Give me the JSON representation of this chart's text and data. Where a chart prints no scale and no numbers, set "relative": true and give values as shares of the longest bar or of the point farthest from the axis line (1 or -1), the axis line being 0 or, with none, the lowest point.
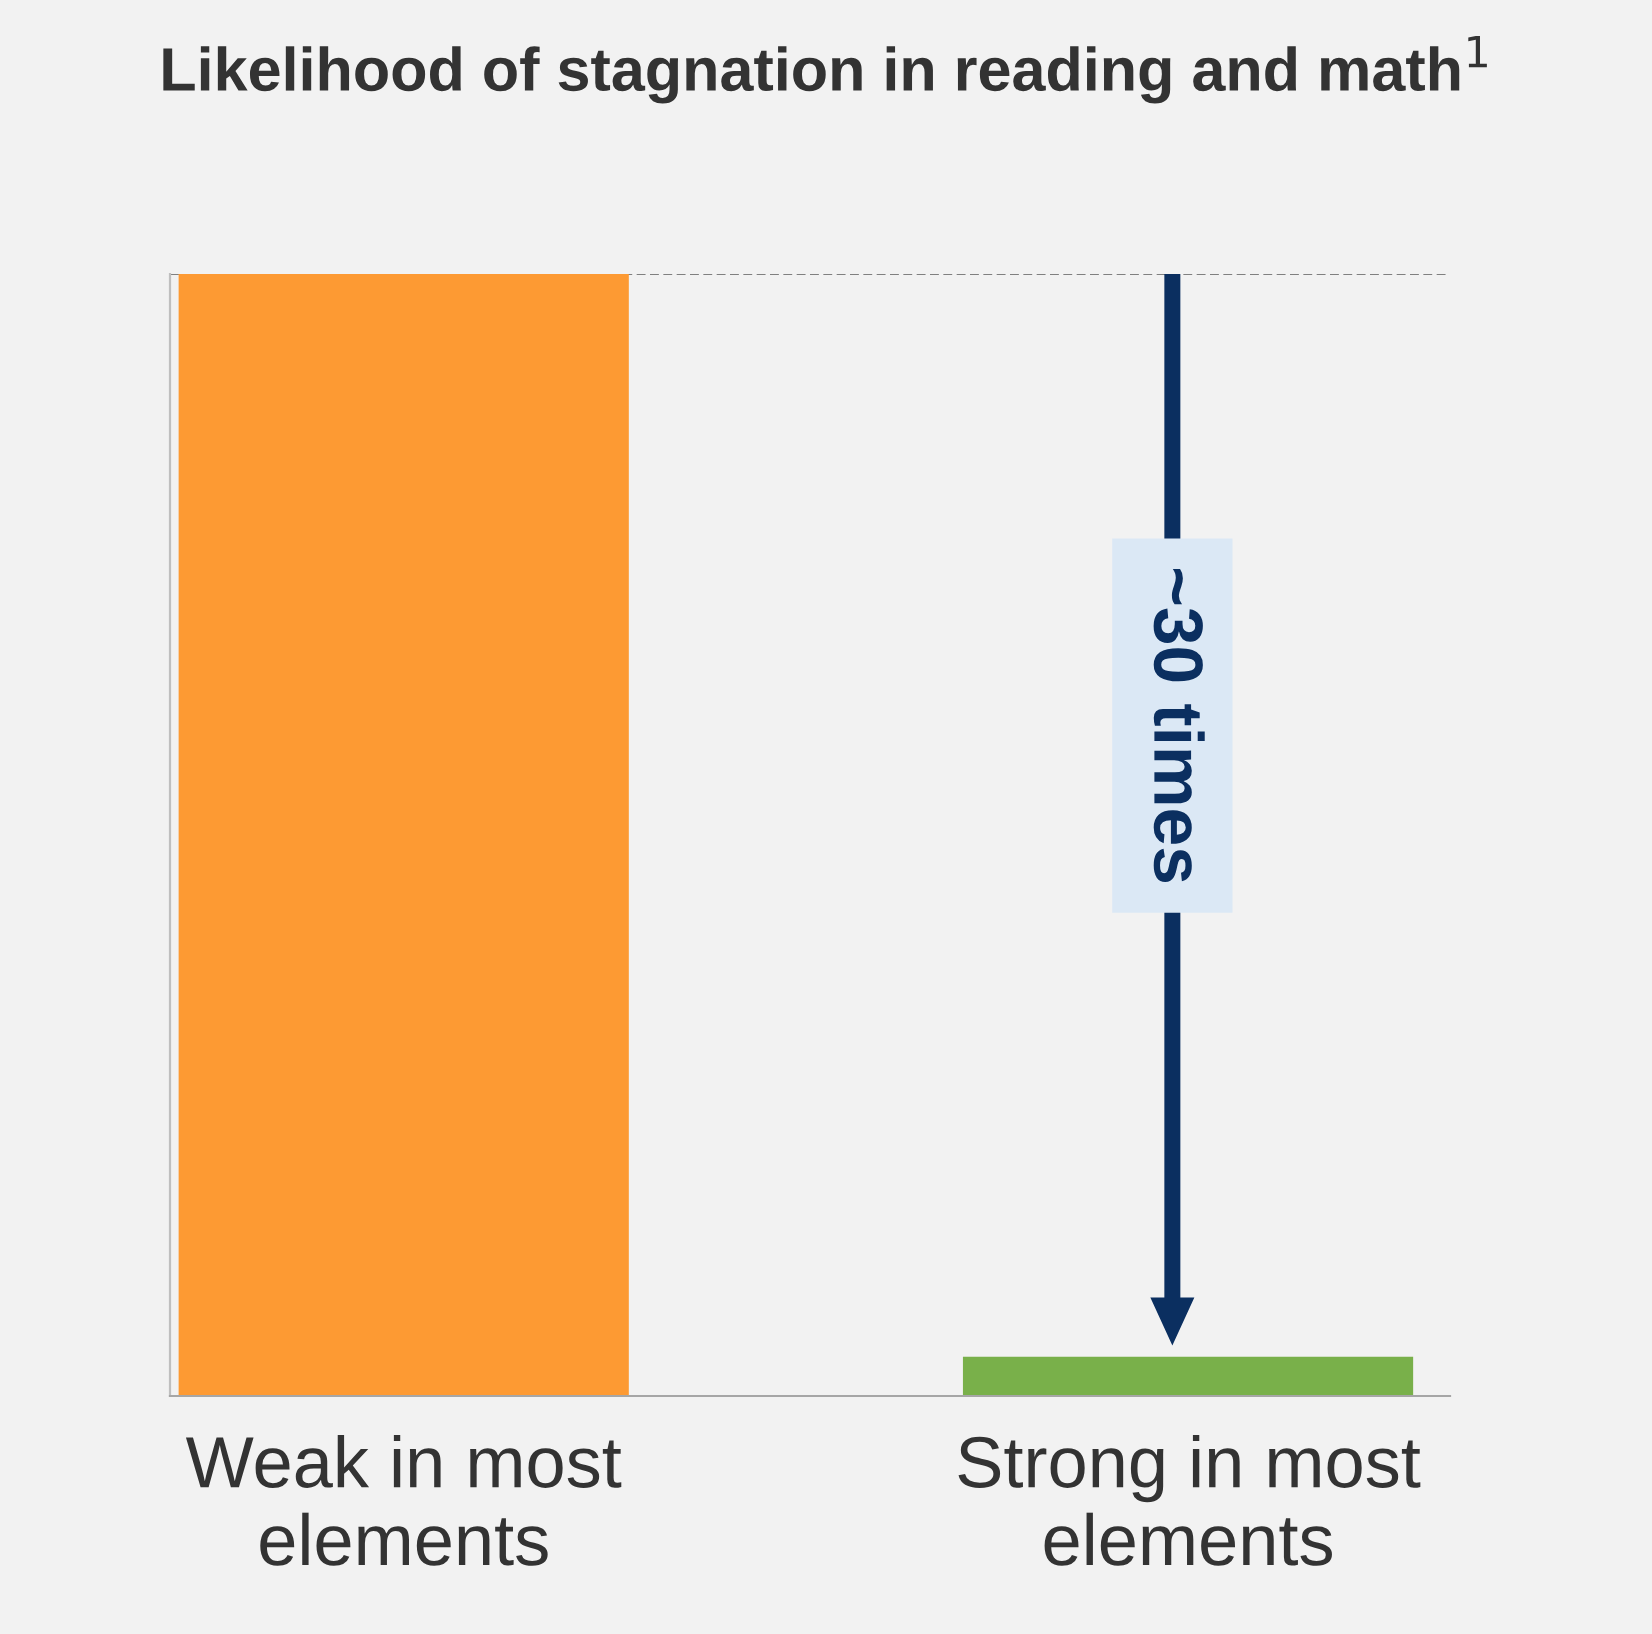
{
  "chart_data": {
    "type": "bar",
    "title": "Likelihood of stagnation in reading and math$^{1}$",
    "categories": [
      "Weak in most\nelements",
      "Strong in most\nelements"
    ],
    "relative": true,
    "values": [
      1,
      0.035
    ],
    "colors": [
      "#fd9a33",
      "#79b04a"
    ],
    "ref_lines": [
      {
        "axis": "y",
        "value": 1,
        "color": "#808080",
        "line_style": "dashed"
      }
    ],
    "annotations": [
      "~30 times"
    ],
    "grid": false,
    "legend": false
  }
}
